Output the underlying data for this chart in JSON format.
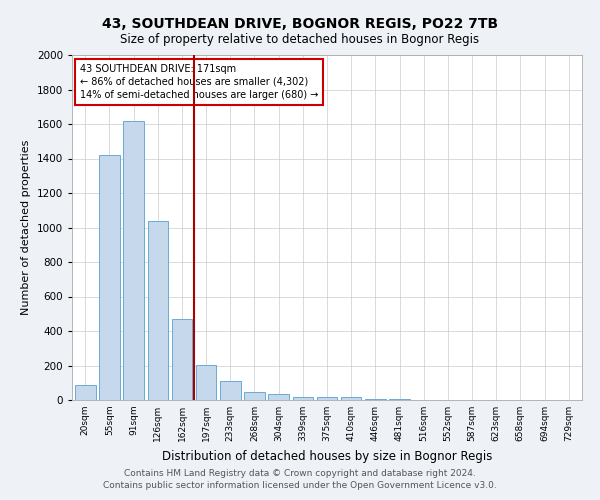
{
  "title": "43, SOUTHDEAN DRIVE, BOGNOR REGIS, PO22 7TB",
  "subtitle": "Size of property relative to detached houses in Bognor Regis",
  "xlabel": "Distribution of detached houses by size in Bognor Regis",
  "ylabel": "Number of detached properties",
  "categories": [
    "20sqm",
    "55sqm",
    "91sqm",
    "126sqm",
    "162sqm",
    "197sqm",
    "233sqm",
    "268sqm",
    "304sqm",
    "339sqm",
    "375sqm",
    "410sqm",
    "446sqm",
    "481sqm",
    "516sqm",
    "552sqm",
    "587sqm",
    "623sqm",
    "658sqm",
    "694sqm",
    "729sqm"
  ],
  "values": [
    85,
    1420,
    1620,
    1040,
    470,
    205,
    110,
    45,
    35,
    20,
    15,
    18,
    5,
    3,
    2,
    1,
    1,
    1,
    1,
    0,
    0
  ],
  "bar_color": "#c5d8ec",
  "bar_edge_color": "#6aaad4",
  "annotation_line1": "43 SOUTHDEAN DRIVE: 171sqm",
  "annotation_line2": "← 86% of detached houses are smaller (4,302)",
  "annotation_line3": "14% of semi-detached houses are larger (680) →",
  "annotation_box_color": "#ffffff",
  "annotation_box_edge_color": "#cc0000",
  "red_line_color": "#aa0000",
  "ylim": [
    0,
    2000
  ],
  "yticks": [
    0,
    200,
    400,
    600,
    800,
    1000,
    1200,
    1400,
    1600,
    1800,
    2000
  ],
  "footer_line1": "Contains HM Land Registry data © Crown copyright and database right 2024.",
  "footer_line2": "Contains public sector information licensed under the Open Government Licence v3.0.",
  "background_color": "#eef2f7",
  "plot_background_color": "#ffffff",
  "grid_color": "#cccccc"
}
